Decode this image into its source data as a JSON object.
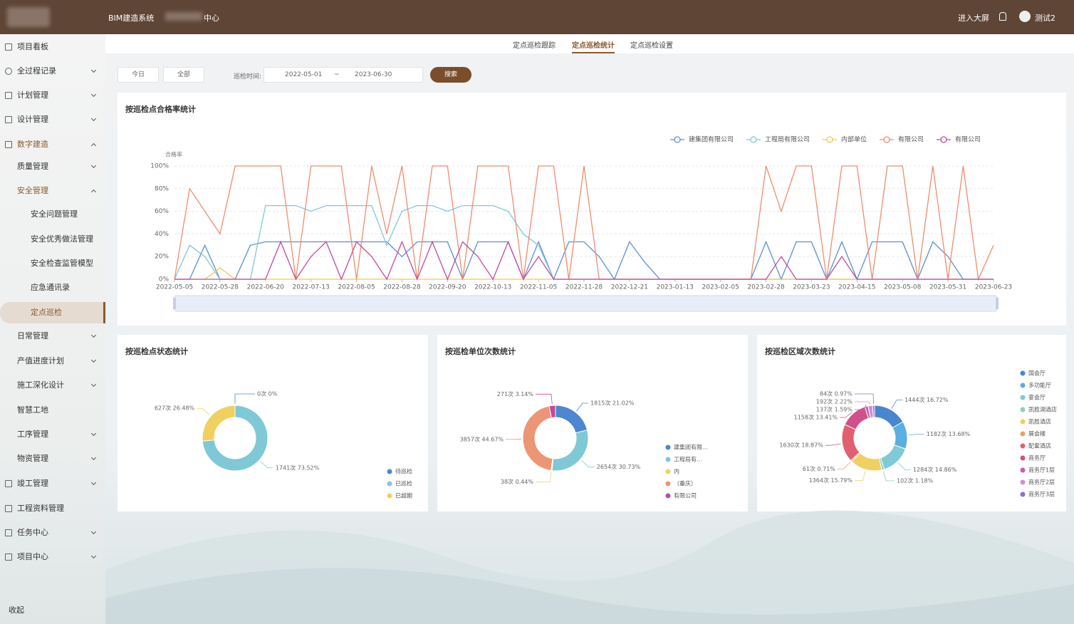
{
  "header": {
    "system": "BIM建造系统",
    "center": "中心",
    "big_screen": "进入大屏",
    "user": "测试2"
  },
  "sidebar": {
    "items": [
      "项目看板",
      "全过程记录",
      "计划管理",
      "设计管理",
      "数字建造",
      "质量管理",
      "安全管理",
      "安全问题管理",
      "安全优秀做法管理",
      "安全检查监管模型",
      "应急通讯录",
      "定点巡检",
      "日常管理",
      "产值进度计划",
      "施工深化设计",
      "智慧工地",
      "工序管理",
      "物资管理",
      "竣工管理",
      "工程资料管理",
      "任务中心",
      "项目中心"
    ],
    "collapse": "收起"
  },
  "tabs": [
    "定点巡检跟踪",
    "定点巡检统计",
    "定点巡检设置"
  ],
  "filters": {
    "today": "今日",
    "all": "全部",
    "time_label": "巡检时间:",
    "start": "2022-05-01",
    "separator": "~",
    "end": "2023-06-30",
    "search": "搜索"
  },
  "chart_data": [
    {
      "type": "line",
      "title": "按巡检点合格率统计",
      "y_label": "合格率",
      "categories": [
        "2022-05-05",
        null,
        null,
        "2022-05-28",
        null,
        null,
        "2022-06-20",
        null,
        null,
        "2022-07-13",
        null,
        null,
        "2022-08-05",
        null,
        null,
        "2022-08-28",
        null,
        null,
        "2022-09-20",
        null,
        null,
        "2022-10-13",
        null,
        null,
        "2022-11-05",
        null,
        null,
        "2022-11-28",
        null,
        null,
        "2022-12-21",
        null,
        null,
        "2023-01-13",
        null,
        null,
        "2023-02-05",
        null,
        null,
        "2023-02-28",
        null,
        null,
        "2023-03-23",
        null,
        null,
        "2023-04-15",
        null,
        null,
        "2023-05-08",
        null,
        null,
        "2023-05-31",
        null,
        null,
        "2023-06-23"
      ],
      "ylim": [
        0,
        100
      ],
      "yticks": [
        {
          "value": 0,
          "label": "0%"
        },
        {
          "value": 20,
          "label": "20%"
        },
        {
          "value": 40,
          "label": "40%"
        },
        {
          "value": 60,
          "label": "60%"
        },
        {
          "value": 80,
          "label": "80%"
        },
        {
          "value": 100,
          "label": "100%"
        }
      ],
      "grid": true,
      "series": [
        {
          "name": "建集团有限公司",
          "color": "#5b8fd6",
          "values": [
            0,
            0,
            30,
            0,
            0,
            30,
            33,
            33,
            33,
            33,
            33,
            33,
            33,
            33,
            33,
            20,
            33,
            33,
            33,
            0,
            33,
            33,
            33,
            0,
            33,
            0,
            33,
            33,
            20,
            0,
            33,
            15,
            0,
            0,
            0,
            0,
            0,
            0,
            0,
            33,
            0,
            33,
            33,
            0,
            33,
            0,
            33,
            33,
            33,
            0,
            33,
            20,
            0,
            0,
            0
          ]
        },
        {
          "name": "工程局有限公司",
          "color": "#7fc8d6",
          "values": [
            0,
            30,
            20,
            0,
            0,
            0,
            65,
            65,
            65,
            60,
            65,
            65,
            65,
            65,
            30,
            60,
            65,
            65,
            60,
            65,
            65,
            65,
            60,
            40,
            30,
            0,
            0,
            0,
            0,
            0,
            0,
            0,
            0,
            0,
            0,
            0,
            0,
            0,
            0,
            0,
            0,
            0,
            0,
            0,
            0,
            0,
            0,
            0,
            0,
            0,
            0,
            0,
            0,
            0,
            0
          ]
        },
        {
          "name": "内部单位",
          "color": "#f0c84a",
          "values": [
            0,
            0,
            0,
            10,
            0,
            0,
            0,
            0,
            0,
            0,
            0,
            0,
            0,
            0,
            0,
            0,
            0,
            0,
            0,
            0,
            0,
            0,
            0,
            0,
            0,
            0,
            0,
            0,
            0,
            0,
            0,
            0,
            0,
            0,
            0,
            0,
            0,
            0,
            0,
            0,
            0,
            0,
            0,
            0,
            0,
            0,
            0,
            0,
            0,
            0,
            0,
            0,
            0,
            0,
            0
          ]
        },
        {
          "name": "有限公司",
          "color": "#f08c6a",
          "values": [
            0,
            80,
            60,
            40,
            100,
            100,
            100,
            100,
            0,
            100,
            100,
            100,
            0,
            100,
            40,
            100,
            0,
            100,
            100,
            0,
            100,
            100,
            100,
            0,
            100,
            100,
            0,
            100,
            0,
            0,
            0,
            0,
            0,
            0,
            0,
            0,
            0,
            0,
            0,
            100,
            60,
            100,
            100,
            0,
            100,
            100,
            0,
            100,
            100,
            0,
            100,
            0,
            100,
            0,
            30
          ]
        },
        {
          "name": "有限公司",
          "color": "#c04aa0",
          "values": [
            0,
            0,
            0,
            0,
            0,
            0,
            0,
            33,
            0,
            20,
            33,
            0,
            33,
            20,
            0,
            33,
            0,
            33,
            0,
            33,
            20,
            0,
            33,
            0,
            20,
            0,
            0,
            0,
            0,
            0,
            0,
            0,
            0,
            0,
            0,
            0,
            0,
            0,
            0,
            0,
            20,
            0,
            0,
            0,
            20,
            0,
            0,
            0,
            0,
            0,
            0,
            0,
            0,
            0,
            0
          ]
        }
      ]
    },
    {
      "type": "pie",
      "title": "按巡检点状态统计",
      "categories": [
        "待巡检",
        "已巡检",
        "已超期"
      ],
      "values": [
        0,
        1741,
        627
      ],
      "value_labels": [
        "0次 0%",
        "1741次 73.52%",
        "627次 26.48%"
      ],
      "colors": [
        "#4f86d0",
        "#7fc8d6",
        "#f0d060"
      ]
    },
    {
      "type": "pie",
      "title": "按巡检单位次数统计",
      "categories": [
        "建集团有限...",
        "工程局有...",
        "内",
        "（重庆）",
        "有限公司"
      ],
      "values": [
        1815,
        2654,
        38,
        3857,
        271
      ],
      "value_labels": [
        "1815次 21.02%",
        "2654次 30.73%",
        "38次 0.44%",
        "3857次 44.67%",
        "271次 3.14%"
      ],
      "colors": [
        "#4f86d0",
        "#7fc8d6",
        "#f0d060",
        "#ec9676",
        "#c04aa0"
      ]
    },
    {
      "type": "pie",
      "title": "按巡检区域次数统计",
      "categories": [
        "国会厅",
        "多功能厅",
        "宴会厅",
        "凯胜湖酒店",
        "凯胜酒店",
        "展会楼",
        "配套酒店",
        "商务厅",
        "商务厅1层",
        "商务厅2层",
        "商务厅3层"
      ],
      "values": [
        1444,
        1182,
        1284,
        102,
        1364,
        61,
        1630,
        1158,
        137,
        192,
        84
      ],
      "value_labels": [
        "1444次 16.72%",
        "1182次 13.68%",
        "1284次 14.86%",
        "102次 1.18%",
        "1364次 15.79%",
        "61次 0.71%",
        "1630次 18.87%",
        "1158次 13.41%",
        "137次 1.59%",
        "192次 2.22%",
        "84次 0.97%"
      ],
      "colors": [
        "#4a86d0",
        "#5aaee0",
        "#7fcad6",
        "#8fd0b8",
        "#f0d060",
        "#f0a060",
        "#e06070",
        "#d0508a",
        "#c060b0",
        "#d090d0",
        "#9070c8"
      ]
    }
  ]
}
